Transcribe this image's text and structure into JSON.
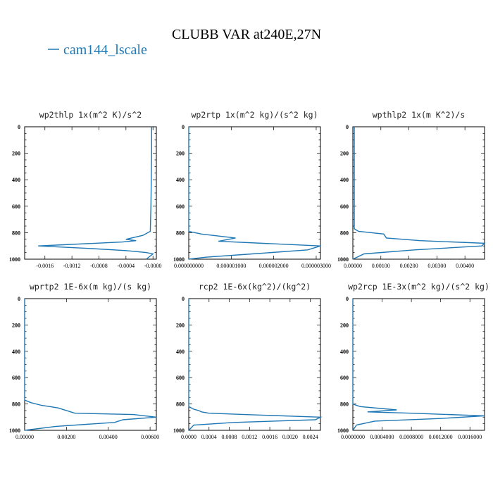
{
  "figure": {
    "title": "CLUBB VAR at240E,27N",
    "legend_label": "cam144_lscale",
    "legend_color": "#1f77b4"
  },
  "chart_data": [
    {
      "type": "line",
      "title": "wp2thlp  1x(m^2 K)/s^2",
      "xlim": [
        -0.0019,
        5e-05
      ],
      "ylim": [
        1000,
        0
      ],
      "x_ticks": [
        -0.0016,
        -0.0012,
        -0.0008,
        -0.0004,
        0.0
      ],
      "x_tick_labels": [
        "-0.0016",
        "-0.0012",
        "-0.0008",
        "-0.0004",
        "-0.0000"
      ],
      "y_ticks": [
        0,
        200,
        400,
        600,
        800,
        1000
      ],
      "y_tick_labels": [
        "0",
        "200",
        "400",
        "600",
        "800",
        "1000"
      ],
      "series": [
        {
          "name": "cam144_lscale",
          "x": [
            -2e-05,
            -2e-05,
            -3e-05,
            -4e-05,
            -0.00015,
            -0.0004,
            -0.00025,
            -0.00045,
            -0.0017,
            -0.0009,
            -0.0004,
            -0.0001,
            0.0,
            -0.0001
          ],
          "y": [
            0,
            200,
            600,
            790,
            820,
            850,
            860,
            870,
            900,
            920,
            935,
            950,
            960,
            1000
          ]
        }
      ]
    },
    {
      "type": "line",
      "title": "wp2rtp  1x(m^2 kg)/(s^2 kg)",
      "xlim": [
        0.0,
        3.1e-06
      ],
      "ylim": [
        1000,
        0
      ],
      "x_ticks": [
        0.0,
        1e-06,
        2e-06,
        3e-06
      ],
      "x_tick_labels": [
        "0.000000000",
        "0.000001000",
        "0.000002000",
        "0.000003000"
      ],
      "y_ticks": [
        0,
        200,
        400,
        600,
        800,
        1000
      ],
      "y_tick_labels": [
        "0",
        "200",
        "400",
        "600",
        "800",
        "1000"
      ],
      "series": [
        {
          "name": "cam144_lscale",
          "x": [
            0.0,
            0.0,
            3e-07,
            1.1e-06,
            7e-07,
            3.1e-06,
            2.8e-06,
            1.5e-06,
            4e-07,
            0.0
          ],
          "y": [
            0,
            790,
            810,
            840,
            865,
            900,
            930,
            960,
            985,
            1000
          ]
        }
      ]
    },
    {
      "type": "line",
      "title": "wpthlp2  1x(m K^2)/s",
      "xlim": [
        0.0,
        0.0047
      ],
      "ylim": [
        1000,
        0
      ],
      "x_ticks": [
        0.0,
        0.001,
        0.002,
        0.003,
        0.004
      ],
      "x_tick_labels": [
        "0.00000",
        "0.00100",
        "0.00200",
        "0.00300",
        "0.00400"
      ],
      "y_ticks": [
        0,
        200,
        400,
        600,
        800,
        1000
      ],
      "y_tick_labels": [
        "0",
        "200",
        "400",
        "600",
        "800",
        "1000"
      ],
      "series": [
        {
          "name": "cam144_lscale",
          "x": [
            5e-05,
            5e-05,
            0.0002,
            0.0011,
            0.0012,
            0.0024,
            0.0047,
            0.0046,
            0.0022,
            0.0004,
            0.0
          ],
          "y": [
            0,
            770,
            790,
            810,
            840,
            860,
            880,
            900,
            930,
            960,
            1000
          ]
        }
      ]
    },
    {
      "type": "line",
      "title": "wprtp2  1E-6x(m kg)/(s kg)",
      "xlim": [
        0.0,
        0.0063
      ],
      "ylim": [
        1000,
        0
      ],
      "x_ticks": [
        0.0,
        0.002,
        0.004,
        0.006
      ],
      "x_tick_labels": [
        "0.00000",
        "0.00200",
        "0.00400",
        "0.00600"
      ],
      "y_ticks": [
        0,
        200,
        400,
        600,
        800,
        1000
      ],
      "y_tick_labels": [
        "0",
        "200",
        "400",
        "600",
        "800",
        "1000"
      ],
      "series": [
        {
          "name": "cam144_lscale",
          "x": [
            0.0,
            0.0,
            0.0003,
            0.0008,
            0.0016,
            0.0024,
            0.0052,
            0.0063,
            0.0047,
            0.0043,
            0.0015,
            0.0
          ],
          "y": [
            0,
            770,
            790,
            810,
            830,
            870,
            880,
            900,
            920,
            940,
            970,
            1000
          ]
        }
      ]
    },
    {
      "type": "line",
      "title": "rcp2  1E-6x(kg^2)/(kg^2)",
      "xlim": [
        0.0,
        0.0026
      ],
      "ylim": [
        1000,
        0
      ],
      "x_ticks": [
        0.0,
        0.0004,
        0.0008,
        0.0012,
        0.0016,
        0.002,
        0.0024
      ],
      "x_tick_labels": [
        "0.0000",
        "0.0004",
        "0.0008",
        "0.0012",
        "0.0016",
        "0.0020",
        "0.0024"
      ],
      "y_ticks": [
        0,
        200,
        400,
        600,
        800,
        1000
      ],
      "y_tick_labels": [
        "0",
        "200",
        "400",
        "600",
        "800",
        "1000"
      ],
      "series": [
        {
          "name": "cam144_lscale",
          "x": [
            0.0,
            0.0,
            0.0001,
            0.0002,
            0.00025,
            0.0004,
            0.0011,
            0.0026,
            0.0025,
            0.0009,
            0.0001,
            0.0
          ],
          "y": [
            0,
            820,
            840,
            850,
            860,
            870,
            880,
            900,
            920,
            940,
            960,
            1000
          ]
        }
      ]
    },
    {
      "type": "line",
      "title": "wp2rcp  1E-3x(m^2 kg)/(s^2 kg)",
      "xlim": [
        0.0,
        0.0018
      ],
      "ylim": [
        1000,
        0
      ],
      "x_ticks": [
        0.0,
        0.0004,
        0.0008,
        0.0012,
        0.0016
      ],
      "x_tick_labels": [
        "0.0000000",
        "0.0004000",
        "0.0008000",
        "0.0012000",
        "0.0016000"
      ],
      "y_ticks": [
        0,
        200,
        400,
        600,
        800,
        1000
      ],
      "y_tick_labels": [
        "0",
        "200",
        "400",
        "600",
        "800",
        "1000"
      ],
      "series": [
        {
          "name": "cam144_lscale",
          "x": [
            0.0,
            0.0,
            0.0001,
            0.0006,
            0.0002,
            0.0008,
            0.0018,
            0.0012,
            0.0003,
            5e-05,
            0.0
          ],
          "y": [
            0,
            800,
            820,
            845,
            860,
            870,
            890,
            910,
            930,
            960,
            1000
          ]
        }
      ]
    }
  ]
}
